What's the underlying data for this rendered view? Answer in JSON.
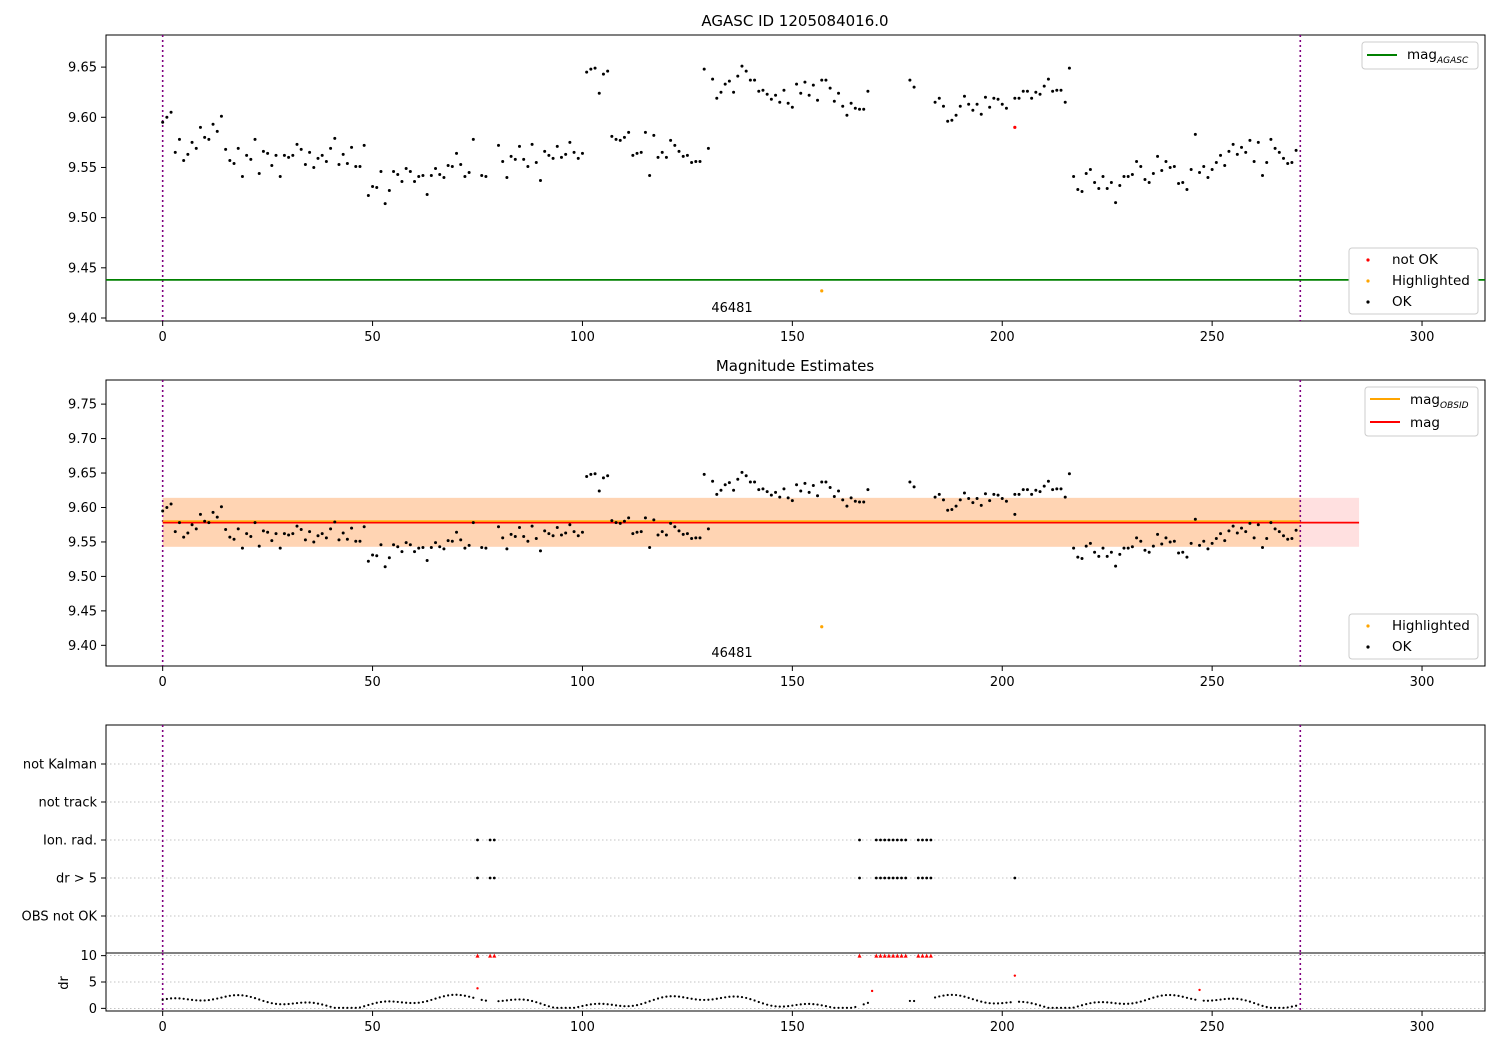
{
  "chart_data": [
    {
      "type": "scatter",
      "title": "AGASC ID 1205084016.0",
      "xlim": [
        -13.5,
        315
      ],
      "ylim": [
        9.397,
        9.682
      ],
      "x_ticks": [
        "0",
        "50",
        "100",
        "150",
        "200",
        "250",
        "300"
      ],
      "y_ticks": [
        "9.40",
        "9.45",
        "9.50",
        "9.55",
        "9.60",
        "9.65"
      ],
      "vlines_x": [
        0,
        271
      ],
      "hline": {
        "name": "mag_AGASC",
        "value": 9.438,
        "color": "#008000"
      },
      "annotation": {
        "text": "46481",
        "x": 135,
        "y": 9.406
      },
      "legend_top": [
        {
          "label": "mag",
          "sub": "AGASC",
          "color": "#008000"
        }
      ],
      "legend_bottom": [
        {
          "label": "not OK",
          "color": "#ff0000"
        },
        {
          "label": "Highlighted",
          "color": "#ffa500"
        },
        {
          "label": "OK",
          "color": "#000000"
        }
      ],
      "ok_points_note": "approximate trace of OK points (x index, magnitude)",
      "ok_points": [
        [
          0,
          9.595
        ],
        [
          1,
          9.6
        ],
        [
          2,
          9.605
        ],
        [
          3,
          9.565
        ],
        [
          4,
          9.578
        ],
        [
          5,
          9.557
        ],
        [
          6,
          9.563
        ],
        [
          7,
          9.575
        ],
        [
          8,
          9.569
        ],
        [
          9,
          9.59
        ],
        [
          10,
          9.58
        ],
        [
          11,
          9.578
        ],
        [
          12,
          9.593
        ],
        [
          13,
          9.586
        ],
        [
          14,
          9.601
        ],
        [
          15,
          9.568
        ],
        [
          16,
          9.557
        ],
        [
          17,
          9.554
        ],
        [
          18,
          9.569
        ],
        [
          19,
          9.541
        ],
        [
          20,
          9.562
        ],
        [
          21,
          9.558
        ],
        [
          22,
          9.578
        ],
        [
          23,
          9.544
        ],
        [
          24,
          9.566
        ],
        [
          25,
          9.564
        ],
        [
          26,
          9.552
        ],
        [
          27,
          9.562
        ],
        [
          28,
          9.541
        ],
        [
          29,
          9.562
        ],
        [
          30,
          9.56
        ],
        [
          31,
          9.562
        ],
        [
          32,
          9.573
        ],
        [
          33,
          9.568
        ],
        [
          34,
          9.553
        ],
        [
          35,
          9.565
        ],
        [
          36,
          9.55
        ],
        [
          37,
          9.559
        ],
        [
          38,
          9.562
        ],
        [
          39,
          9.556
        ],
        [
          40,
          9.569
        ],
        [
          41,
          9.579
        ],
        [
          42,
          9.553
        ],
        [
          43,
          9.563
        ],
        [
          44,
          9.554
        ],
        [
          45,
          9.57
        ],
        [
          46,
          9.551
        ],
        [
          47,
          9.551
        ],
        [
          48,
          9.572
        ],
        [
          49,
          9.522
        ],
        [
          50,
          9.531
        ],
        [
          51,
          9.53
        ],
        [
          52,
          9.546
        ],
        [
          53,
          9.514
        ],
        [
          54,
          9.527
        ],
        [
          55,
          9.546
        ],
        [
          56,
          9.543
        ],
        [
          57,
          9.536
        ],
        [
          58,
          9.549
        ],
        [
          59,
          9.546
        ],
        [
          60,
          9.536
        ],
        [
          61,
          9.541
        ],
        [
          62,
          9.542
        ],
        [
          63,
          9.523
        ],
        [
          64,
          9.542
        ],
        [
          65,
          9.549
        ],
        [
          66,
          9.543
        ],
        [
          67,
          9.54
        ],
        [
          68,
          9.552
        ],
        [
          69,
          9.551
        ],
        [
          70,
          9.564
        ],
        [
          71,
          9.553
        ],
        [
          72,
          9.541
        ],
        [
          73,
          9.545
        ],
        [
          74,
          9.578
        ],
        [
          76,
          9.542
        ],
        [
          77,
          9.541
        ],
        [
          80,
          9.572
        ],
        [
          81,
          9.556
        ],
        [
          82,
          9.54
        ],
        [
          83,
          9.561
        ],
        [
          84,
          9.558
        ],
        [
          85,
          9.571
        ],
        [
          86,
          9.558
        ],
        [
          87,
          9.551
        ],
        [
          88,
          9.573
        ],
        [
          89,
          9.555
        ],
        [
          90,
          9.537
        ],
        [
          91,
          9.566
        ],
        [
          92,
          9.562
        ],
        [
          93,
          9.559
        ],
        [
          94,
          9.571
        ],
        [
          95,
          9.56
        ],
        [
          96,
          9.563
        ],
        [
          97,
          9.575
        ],
        [
          98,
          9.565
        ],
        [
          99,
          9.559
        ],
        [
          100,
          9.564
        ],
        [
          101,
          9.645
        ],
        [
          102,
          9.648
        ],
        [
          103,
          9.649
        ],
        [
          104,
          9.624
        ],
        [
          105,
          9.643
        ],
        [
          106,
          9.646
        ],
        [
          107,
          9.581
        ],
        [
          108,
          9.578
        ],
        [
          109,
          9.577
        ],
        [
          110,
          9.58
        ],
        [
          111,
          9.585
        ],
        [
          112,
          9.562
        ],
        [
          113,
          9.564
        ],
        [
          114,
          9.565
        ],
        [
          115,
          9.585
        ],
        [
          116,
          9.542
        ],
        [
          117,
          9.582
        ],
        [
          118,
          9.56
        ],
        [
          119,
          9.565
        ],
        [
          120,
          9.56
        ],
        [
          121,
          9.577
        ],
        [
          122,
          9.572
        ],
        [
          123,
          9.566
        ],
        [
          124,
          9.561
        ],
        [
          125,
          9.562
        ],
        [
          126,
          9.555
        ],
        [
          127,
          9.556
        ],
        [
          128,
          9.556
        ],
        [
          129,
          9.648
        ],
        [
          130,
          9.569
        ],
        [
          131,
          9.638
        ],
        [
          132,
          9.619
        ],
        [
          133,
          9.625
        ],
        [
          134,
          9.633
        ],
        [
          135,
          9.636
        ],
        [
          136,
          9.625
        ],
        [
          137,
          9.641
        ],
        [
          138,
          9.651
        ],
        [
          139,
          9.646
        ],
        [
          140,
          9.637
        ],
        [
          141,
          9.637
        ],
        [
          142,
          9.626
        ],
        [
          143,
          9.627
        ],
        [
          144,
          9.623
        ],
        [
          145,
          9.618
        ],
        [
          146,
          9.622
        ],
        [
          147,
          9.615
        ],
        [
          148,
          9.627
        ],
        [
          149,
          9.614
        ],
        [
          150,
          9.61
        ],
        [
          151,
          9.633
        ],
        [
          152,
          9.624
        ],
        [
          153,
          9.635
        ],
        [
          154,
          9.622
        ],
        [
          155,
          9.632
        ],
        [
          156,
          9.617
        ],
        [
          157,
          9.637
        ],
        [
          158,
          9.637
        ],
        [
          159,
          9.629
        ],
        [
          160,
          9.616
        ],
        [
          161,
          9.624
        ],
        [
          162,
          9.611
        ],
        [
          163,
          9.602
        ],
        [
          164,
          9.614
        ],
        [
          165,
          9.609
        ],
        [
          166,
          9.608
        ],
        [
          167,
          9.608
        ],
        [
          168,
          9.626
        ],
        [
          178,
          9.637
        ],
        [
          179,
          9.63
        ],
        [
          184,
          9.615
        ],
        [
          185,
          9.619
        ],
        [
          186,
          9.611
        ],
        [
          187,
          9.596
        ],
        [
          188,
          9.597
        ],
        [
          189,
          9.602
        ],
        [
          190,
          9.611
        ],
        [
          191,
          9.621
        ],
        [
          192,
          9.613
        ],
        [
          193,
          9.607
        ],
        [
          194,
          9.613
        ],
        [
          195,
          9.603
        ],
        [
          196,
          9.62
        ],
        [
          197,
          9.61
        ],
        [
          198,
          9.619
        ],
        [
          199,
          9.618
        ],
        [
          200,
          9.613
        ],
        [
          201,
          9.609
        ],
        [
          203,
          9.619
        ],
        [
          204,
          9.619
        ],
        [
          205,
          9.626
        ],
        [
          206,
          9.626
        ],
        [
          207,
          9.619
        ],
        [
          208,
          9.625
        ],
        [
          209,
          9.623
        ],
        [
          210,
          9.631
        ],
        [
          211,
          9.638
        ],
        [
          212,
          9.626
        ],
        [
          213,
          9.627
        ],
        [
          214,
          9.627
        ],
        [
          215,
          9.615
        ],
        [
          216,
          9.649
        ],
        [
          217,
          9.541
        ],
        [
          218,
          9.528
        ],
        [
          219,
          9.526
        ],
        [
          220,
          9.544
        ],
        [
          221,
          9.548
        ],
        [
          222,
          9.535
        ],
        [
          223,
          9.529
        ],
        [
          224,
          9.541
        ],
        [
          225,
          9.529
        ],
        [
          226,
          9.535
        ],
        [
          227,
          9.515
        ],
        [
          228,
          9.532
        ],
        [
          229,
          9.541
        ],
        [
          230,
          9.541
        ],
        [
          231,
          9.543
        ],
        [
          232,
          9.556
        ],
        [
          233,
          9.551
        ],
        [
          234,
          9.538
        ],
        [
          235,
          9.535
        ],
        [
          236,
          9.544
        ],
        [
          237,
          9.561
        ],
        [
          238,
          9.547
        ],
        [
          239,
          9.556
        ],
        [
          240,
          9.55
        ],
        [
          241,
          9.551
        ],
        [
          242,
          9.534
        ],
        [
          243,
          9.535
        ],
        [
          244,
          9.528
        ],
        [
          245,
          9.548
        ],
        [
          246,
          9.583
        ],
        [
          247,
          9.545
        ],
        [
          248,
          9.551
        ],
        [
          249,
          9.54
        ],
        [
          250,
          9.548
        ],
        [
          251,
          9.555
        ],
        [
          252,
          9.562
        ],
        [
          253,
          9.552
        ],
        [
          254,
          9.566
        ],
        [
          255,
          9.573
        ],
        [
          256,
          9.563
        ],
        [
          257,
          9.57
        ],
        [
          258,
          9.565
        ],
        [
          259,
          9.577
        ],
        [
          260,
          9.556
        ],
        [
          261,
          9.575
        ],
        [
          262,
          9.542
        ],
        [
          263,
          9.555
        ],
        [
          264,
          9.578
        ],
        [
          265,
          9.569
        ],
        [
          266,
          9.565
        ],
        [
          267,
          9.559
        ],
        [
          268,
          9.554
        ],
        [
          269,
          9.555
        ],
        [
          270,
          9.567
        ]
      ],
      "not_ok_points": [
        [
          203,
          9.59
        ]
      ],
      "highlighted_points": [
        [
          157,
          9.427
        ]
      ]
    },
    {
      "type": "scatter",
      "title": "Magnitude Estimates",
      "xlim": [
        -13.5,
        315
      ],
      "ylim": [
        9.37,
        9.785
      ],
      "x_ticks": [
        "0",
        "50",
        "100",
        "150",
        "200",
        "250",
        "300"
      ],
      "y_ticks": [
        "9.40",
        "9.45",
        "9.50",
        "9.55",
        "9.60",
        "9.65",
        "9.70",
        "9.75"
      ],
      "vlines_x": [
        0,
        271
      ],
      "mag_obsid": {
        "value": 9.578,
        "band": [
          9.543,
          9.614
        ],
        "x_range": [
          0,
          285
        ],
        "color": "#ffa500"
      },
      "mag": {
        "value": 9.578,
        "band": [
          9.543,
          9.614
        ],
        "x_range": [
          0,
          285
        ],
        "color": "#ff0000"
      },
      "annotation": {
        "text": "46481",
        "x": 135,
        "y": 9.379
      },
      "legend_top": [
        {
          "label": "mag",
          "sub": "OBSID",
          "color": "#ffa500"
        },
        {
          "label": "mag",
          "sub": "",
          "color": "#ff0000"
        }
      ],
      "legend_bottom": [
        {
          "label": "Highlighted",
          "color": "#ffa500"
        },
        {
          "label": "OK",
          "color": "#000000"
        }
      ],
      "ok_points_ref": "same as panel 1 ok_points plus the not-OK point",
      "highlighted_points": [
        [
          157,
          9.427
        ]
      ]
    },
    {
      "type": "scatter",
      "title": "",
      "xlim": [
        -13.5,
        315
      ],
      "x_ticks": [
        "0",
        "50",
        "100",
        "150",
        "200",
        "250",
        "300"
      ],
      "categories": [
        "not Kalman",
        "not track",
        "Ion. rad.",
        "dr > 5",
        "OBS not OK"
      ],
      "vlines_x": [
        0,
        271
      ],
      "flags": {
        "Ion. rad.": [
          75,
          78,
          79,
          166,
          170,
          171,
          172,
          173,
          174,
          175,
          176,
          177,
          180,
          181,
          182,
          183
        ],
        "dr > 5": [
          75,
          78,
          79,
          166,
          170,
          171,
          172,
          173,
          174,
          175,
          176,
          177,
          180,
          181,
          182,
          183,
          203
        ]
      }
    },
    {
      "type": "scatter",
      "ylabel": "dr",
      "xlim": [
        -13.5,
        315
      ],
      "ylim": [
        -0.5,
        10.5
      ],
      "x_ticks": [
        "0",
        "50",
        "100",
        "150",
        "200",
        "250",
        "300"
      ],
      "y_ticks": [
        "0",
        "5",
        "10"
      ],
      "vlines_x": [
        0,
        271
      ],
      "capped_points_red_triangles": [
        [
          75,
          10
        ],
        [
          78,
          10
        ],
        [
          79,
          10
        ],
        [
          166,
          10
        ],
        [
          170,
          10
        ],
        [
          171,
          10
        ],
        [
          172,
          10
        ],
        [
          173,
          10
        ],
        [
          174,
          10
        ],
        [
          175,
          10
        ],
        [
          176,
          10
        ],
        [
          177,
          10
        ],
        [
          180,
          10
        ],
        [
          181,
          10
        ],
        [
          182,
          10
        ],
        [
          183,
          10
        ]
      ],
      "red_points": [
        [
          75,
          3.8
        ],
        [
          169,
          3.3
        ],
        [
          203,
          6.2
        ],
        [
          247,
          3.5
        ]
      ],
      "black_points_note": "approximate dr values for remaining observations"
    }
  ]
}
